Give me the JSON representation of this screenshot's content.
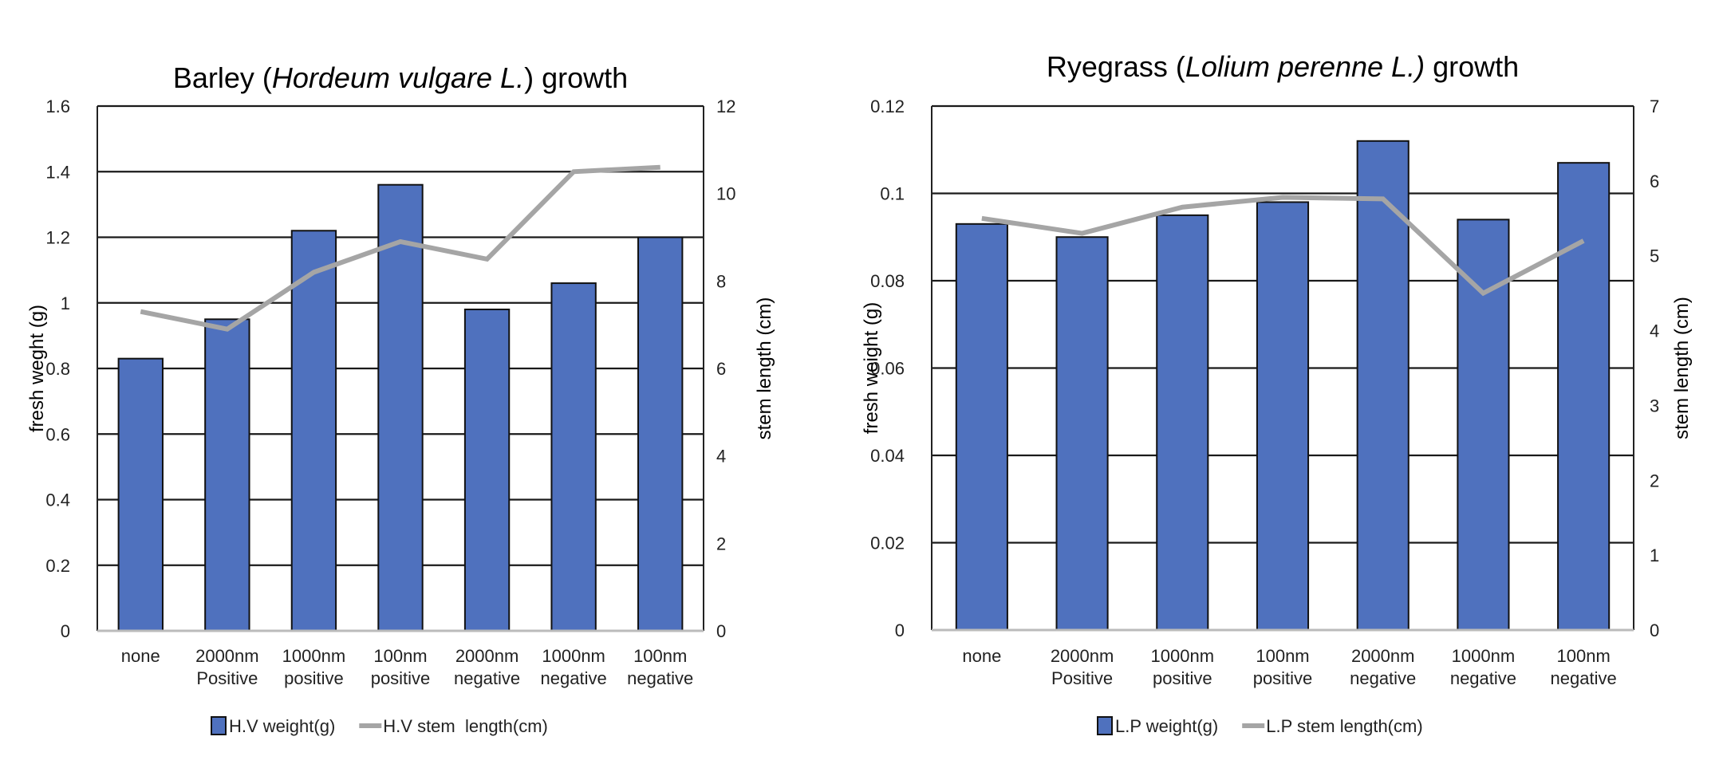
{
  "chart_data": [
    {
      "type": "bar",
      "title": {
        "prefix": "Barley (",
        "italic": "Hordeum vulgare L.",
        "suffix": ") growth"
      },
      "categories": [
        [
          "none"
        ],
        [
          "2000nm",
          "Positive"
        ],
        [
          "1000nm",
          "positive"
        ],
        [
          "100nm",
          "positive"
        ],
        [
          "2000nm",
          "negative"
        ],
        [
          "1000nm",
          "negative"
        ],
        [
          "100nm",
          "negative"
        ]
      ],
      "series": [
        {
          "name": "H.V weight(g)",
          "kind": "bar",
          "axis": "left",
          "color": "#4F71BE",
          "values": [
            0.83,
            0.95,
            1.22,
            1.36,
            0.98,
            1.06,
            1.2
          ]
        },
        {
          "name": "H.V stem  length(cm)",
          "kind": "line",
          "axis": "right",
          "color": "#A5A5A5",
          "values": [
            7.3,
            6.9,
            8.2,
            8.9,
            8.5,
            10.5,
            10.6
          ]
        }
      ],
      "ylabel": "fresh weght (g)",
      "y2label": "stem length (cm)",
      "ylim": [
        0,
        1.6
      ],
      "yticks": [
        "0",
        "0.2",
        "0.4",
        "0.6",
        "0.8",
        "1",
        "1.2",
        "1.4",
        "1.6"
      ],
      "y2lim": [
        0,
        12
      ],
      "y2ticks": [
        "0",
        "2",
        "4",
        "6",
        "8",
        "10",
        "12"
      ],
      "grid": true,
      "legend": "bottom"
    },
    {
      "type": "bar",
      "title": {
        "prefix": "Ryegrass (",
        "italic": "Lolium perenne L.)",
        "suffix": " growth"
      },
      "categories": [
        [
          "none"
        ],
        [
          "2000nm",
          "Positive"
        ],
        [
          "1000nm",
          "positive"
        ],
        [
          "100nm",
          "positive"
        ],
        [
          "2000nm",
          "negative"
        ],
        [
          "1000nm",
          "negative"
        ],
        [
          "100nm",
          "negative"
        ]
      ],
      "series": [
        {
          "name": "L.P weight(g)",
          "kind": "bar",
          "axis": "left",
          "color": "#4F71BE",
          "values": [
            0.093,
            0.09,
            0.095,
            0.098,
            0.112,
            0.094,
            0.107
          ]
        },
        {
          "name": "L.P stem length(cm)",
          "kind": "line",
          "axis": "right",
          "color": "#A5A5A5",
          "values": [
            5.5,
            5.3,
            5.65,
            5.78,
            5.76,
            4.5,
            5.2
          ]
        }
      ],
      "ylabel": "fresh weight (g)",
      "y2label": "stem length (cm)",
      "ylim": [
        0,
        0.12
      ],
      "yticks": [
        "0",
        "0.02",
        "0.04",
        "0.06",
        "0.08",
        "0.1",
        "0.12"
      ],
      "y2lim": [
        0,
        7
      ],
      "y2ticks": [
        "0",
        "1",
        "2",
        "3",
        "4",
        "5",
        "6",
        "7"
      ],
      "grid": true,
      "legend": "bottom"
    }
  ]
}
